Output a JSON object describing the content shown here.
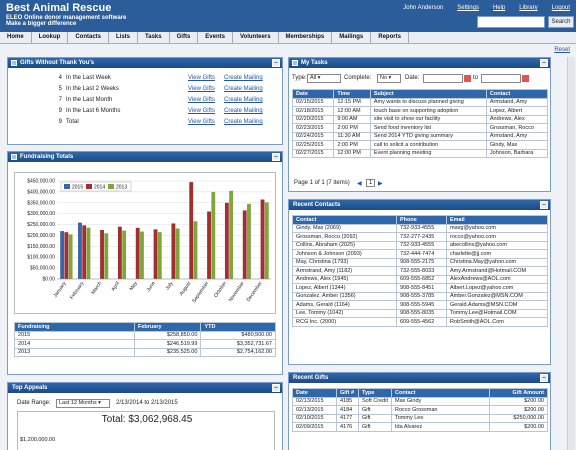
{
  "header": {
    "title": "Best Animal Rescue",
    "tagline1": "ELEO Online donor management software",
    "tagline2": "Make a bigger difference",
    "user": "John Anderson",
    "links": [
      "Settings",
      "Help",
      "Library",
      "Logout"
    ],
    "search_label": "Search"
  },
  "nav": [
    "Home",
    "Lookup",
    "Contacts",
    "Lists",
    "Tasks",
    "Gifts",
    "Events",
    "Volunteers",
    "Memberships",
    "Mailings",
    "Reports"
  ],
  "reset": "Reset",
  "gwt": {
    "title": "Gifts Without Thank You's",
    "rows": [
      {
        "n": "4",
        "label": "In the Last Week",
        "v": "View Gifts",
        "m": "Create Mailing"
      },
      {
        "n": "5",
        "label": "In the Last 2 Weeks",
        "v": "View Gifts",
        "m": "Create Mailing"
      },
      {
        "n": "7",
        "label": "In the Last Month",
        "v": "View Gifts",
        "m": "Create Mailing"
      },
      {
        "n": "9",
        "label": "In the Last 6 Months",
        "v": "View Gifts",
        "m": "Create Mailing"
      },
      {
        "n": "9",
        "label": "Total",
        "v": "View Gifts",
        "m": "Create Mailing"
      }
    ]
  },
  "fund": {
    "title": "Fundraising Totals",
    "headers": [
      "Fundraising",
      "February",
      "YTD"
    ],
    "rows": [
      [
        "2015",
        "$258,850.00",
        "$480,500.00"
      ],
      [
        "2014",
        "$246,519.99",
        "$3,352,731.67"
      ],
      [
        "2013",
        "$235,525.00",
        "$2,754,162.00"
      ]
    ]
  },
  "chart_data": {
    "type": "bar",
    "categories": [
      "January",
      "February",
      "March",
      "April",
      "May",
      "June",
      "July",
      "August",
      "September",
      "October",
      "November",
      "December"
    ],
    "series": [
      {
        "name": "2015",
        "color": "#3a63a8",
        "values": [
          220000,
          258850,
          0,
          0,
          0,
          0,
          0,
          0,
          0,
          0,
          0,
          0
        ]
      },
      {
        "name": "2014",
        "color": "#a22f2f",
        "values": [
          215000,
          246520,
          225000,
          240000,
          235000,
          228000,
          255000,
          445000,
          310000,
          350000,
          315000,
          365000
        ]
      },
      {
        "name": "2013",
        "color": "#7fa63c",
        "values": [
          205000,
          235525,
          210000,
          222000,
          218000,
          215000,
          232000,
          265000,
          400000,
          405000,
          345000,
          352000
        ]
      }
    ],
    "yticks": [
      "$0.00",
      "$50,000.00",
      "$100,000.00",
      "$150,000.00",
      "$200,000.00",
      "$250,000.00",
      "$300,000.00",
      "$350,000.00",
      "$400,000.00",
      "$450,000.00"
    ],
    "ylim": [
      0,
      450000
    ],
    "legend": "top-left"
  },
  "appeals": {
    "title": "Top Appeals",
    "range_label": "Date Range:",
    "range_value": "Last 12 Months",
    "range_text": "2/13/2014 to 2/13/2015",
    "total": "Total: $3,062,968.45",
    "ytick": "$1,200,000.00"
  },
  "tasks": {
    "title": "My Tasks",
    "type_label": "Type:",
    "type_value": "All",
    "complete_label": "Complete:",
    "complete_value": "No",
    "date_label": "Date:",
    "to_label": "to",
    "headers": [
      "Date",
      "Time",
      "Subject",
      "Contact"
    ],
    "rows": [
      [
        "02/15/2015",
        "12:15 PM",
        "Amy wants to discuss planned giving",
        "Armstand, Amy"
      ],
      [
        "02/18/2015",
        "12:00 AM",
        "touch base on supporting adoption",
        "Lopez, Albert"
      ],
      [
        "02/20/2015",
        "9:00 AM",
        "site visit to show our facility",
        "Andrews, Alex"
      ],
      [
        "02/23/2015",
        "2:00 PM",
        "Send food inventory list",
        "Grossman, Rocco"
      ],
      [
        "02/24/2015",
        "11:30 AM",
        "Send 2014 YTD giving summary",
        "Armstand, Amy"
      ],
      [
        "02/25/2015",
        "2:00 PM",
        "call to solicit a contribution",
        "Gindy, Max"
      ],
      [
        "02/27/2015",
        "12:00 PM",
        "Event planning meeting",
        "Johnson, Barbara"
      ]
    ],
    "pager": "Page 1 of 1 (7 items)",
    "page": "1"
  },
  "contacts": {
    "title": "Recent Contacts",
    "headers": [
      "Contact",
      "Phone",
      "Email"
    ],
    "rows": [
      [
        "Gindy, Max (2069)",
        "732-933-4555",
        "maxg@yahoo.com"
      ],
      [
        "Grossman, Rocco (2092)",
        "732-277-2435",
        "rocco@yahoo.com"
      ],
      [
        "Collins, Abraham (2025)",
        "732-933-4555",
        "abecollins@yahoo.com"
      ],
      [
        "Johnson & Johnson (2093)",
        "732-444-7474",
        "charlette@jj.com"
      ],
      [
        "May, Christina (1793)",
        "908-555-2175",
        "Christina.May@yahoo.com"
      ],
      [
        "Armstrand, Amy (1182)",
        "732-555-8033",
        "Amy.Armstrand@Hotmail.COM"
      ],
      [
        "Andrews, Alex (1945)",
        "609-555-6852",
        "AlexAndrews@AOL.com"
      ],
      [
        "Lopez, Albert (1344)",
        "908-555-8451",
        "Albert.Lopez@yahoo.com"
      ],
      [
        "Gonzalez, Amber (1356)",
        "908-555-3785",
        "Amber.Gonzalez@MSN.COM"
      ],
      [
        "Adams, Gerald (1164)",
        "908-555-5945",
        "Gerald.Adams@MSN.COM"
      ],
      [
        "Lee, Tommy (1042)",
        "908-555-8035",
        "Tommy.Lee@Hotmail.COM"
      ],
      [
        "RCG Inc. (2000)",
        "609-555-4562",
        "RobSmith@AOL.Com"
      ]
    ]
  },
  "gifts": {
    "title": "Recent Gifts",
    "headers": [
      "Date",
      "Gift #",
      "Type",
      "Contact",
      "Gift Amount"
    ],
    "rows": [
      [
        "02/13/2015",
        "4185",
        "Soft Credit",
        "Max Gindy",
        "$200.00"
      ],
      [
        "02/13/2015",
        "4184",
        "Gift",
        "Rocco Grossman",
        "$200.00"
      ],
      [
        "02/10/2015",
        "4177",
        "Gift",
        "Tommy Lee",
        "$250,000.00"
      ],
      [
        "02/09/2015",
        "4176",
        "Gift",
        "Ida Alvarez",
        "$200.00"
      ]
    ]
  }
}
